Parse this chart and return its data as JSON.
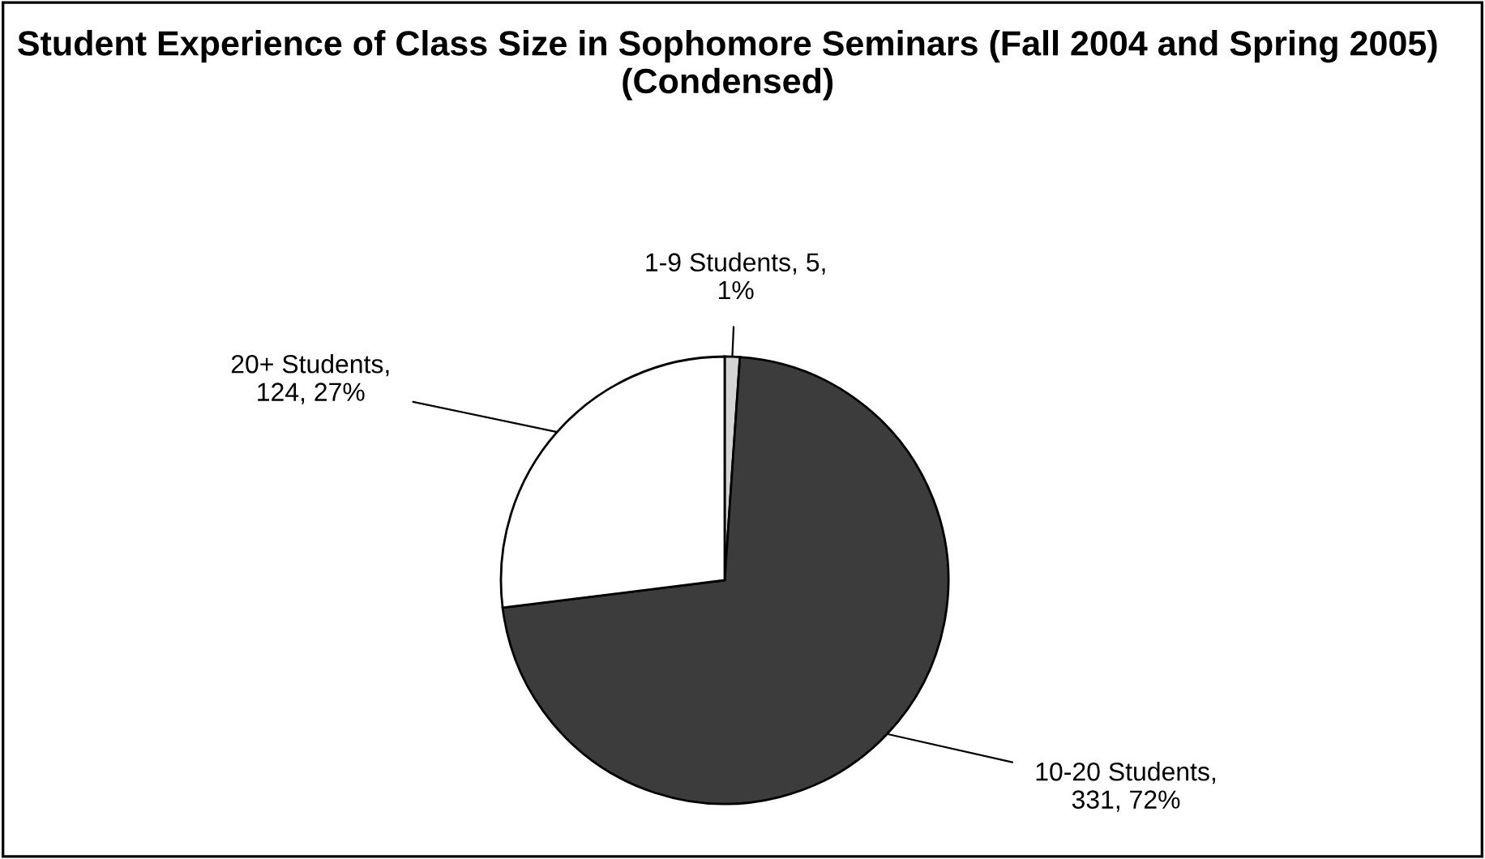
{
  "chart_data": {
    "type": "pie",
    "title": "Student Experience of Class Size in Sophomore Seminars (Fall 2004 and Spring 2005) (Condensed)",
    "categories": [
      "1-9 Students, 5, 1%",
      "10-20 Students, 331, 72%",
      "20+ Students, 124, 27%"
    ],
    "values": [
      5,
      331,
      124
    ],
    "colors": [
      "#d4d4d4",
      "#3c3c3c",
      "#ffffff"
    ],
    "legend": false
  }
}
